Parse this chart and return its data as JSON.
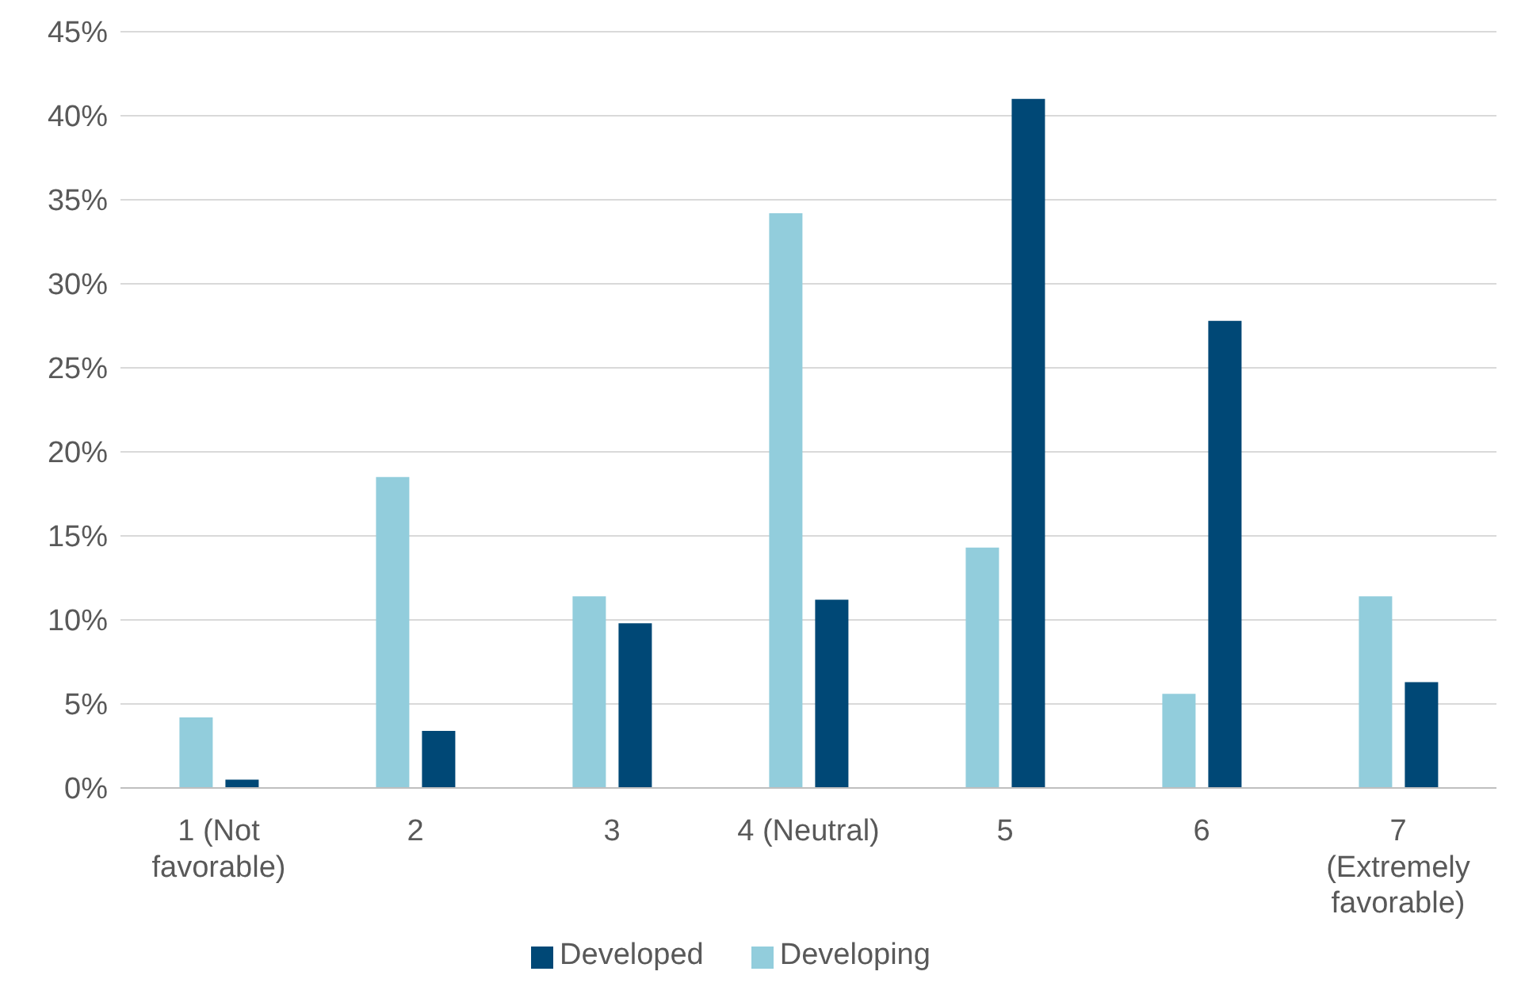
{
  "chart_data": {
    "type": "bar",
    "categories": [
      "1 (Not favorable)",
      "2",
      "3",
      "4 (Neutral)",
      "5",
      "6",
      "7 (Extremely favorable)"
    ],
    "series": [
      {
        "name": "Developing",
        "color": "#92cddc",
        "values": [
          4.2,
          18.5,
          11.4,
          34.2,
          14.3,
          5.6,
          11.4
        ]
      },
      {
        "name": "Developed",
        "color": "#004876",
        "values": [
          0.5,
          3.4,
          9.8,
          11.2,
          41.0,
          27.8,
          6.3
        ]
      }
    ],
    "ylim": [
      0,
      45
    ],
    "yticks": [
      {
        "value": 0,
        "label": "0%"
      },
      {
        "value": 5,
        "label": "5%"
      },
      {
        "value": 10,
        "label": "10%"
      },
      {
        "value": 15,
        "label": "15%"
      },
      {
        "value": 20,
        "label": "20%"
      },
      {
        "value": 25,
        "label": "25%"
      },
      {
        "value": 30,
        "label": "30%"
      },
      {
        "value": 35,
        "label": "35%"
      },
      {
        "value": 40,
        "label": "40%"
      },
      {
        "value": 45,
        "label": "45%"
      }
    ],
    "grid": "y",
    "legend": "bottom"
  }
}
